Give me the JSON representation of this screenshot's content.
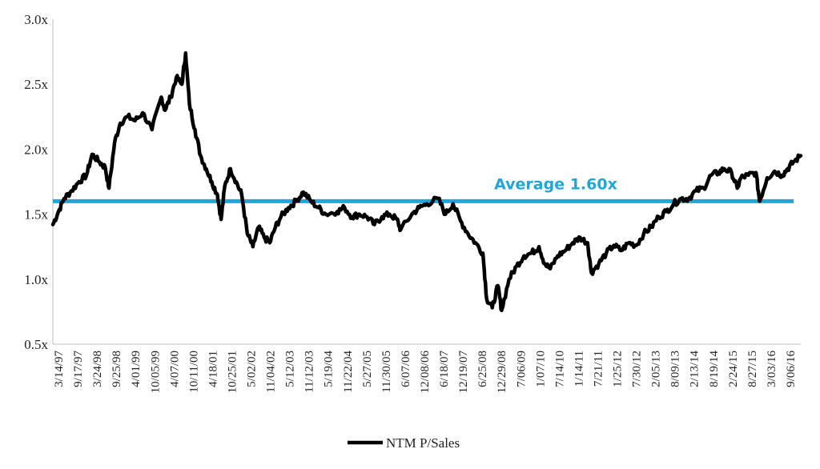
{
  "chart_data": {
    "type": "line",
    "title": "",
    "xlabel": "",
    "ylabel": "",
    "ylim": [
      0.5,
      3.0
    ],
    "y_ticks": [
      "0.5x",
      "1.0x",
      "1.5x",
      "2.0x",
      "2.5x",
      "3.0x"
    ],
    "y_tick_values": [
      0.5,
      1.0,
      1.5,
      2.0,
      2.5,
      3.0
    ],
    "x_ticks": [
      "3/14/97",
      "9/17/97",
      "3/24/98",
      "9/25/98",
      "4/01/99",
      "10/05/99",
      "4/07/00",
      "10/11/00",
      "4/18/01",
      "10/25/01",
      "5/02/02",
      "11/04/02",
      "5/12/03",
      "11/12/03",
      "5/19/04",
      "11/22/04",
      "5/27/05",
      "11/30/05",
      "6/07/06",
      "12/08/06",
      "6/18/07",
      "12/19/07",
      "6/25/08",
      "12/29/08",
      "7/06/09",
      "1/07/10",
      "7/14/10",
      "1/14/11",
      "7/21/11",
      "1/25/12",
      "7/30/12",
      "2/05/13",
      "8/09/13",
      "2/13/14",
      "8/19/14",
      "2/24/15",
      "8/27/15",
      "3/03/16",
      "9/06/16"
    ],
    "series": [
      {
        "name": "NTM P/Sales",
        "color": "#000000",
        "x_start": 1997.2,
        "x_end": 2017.2,
        "points": [
          [
            1997.2,
            1.42
          ],
          [
            1997.35,
            1.52
          ],
          [
            1997.5,
            1.62
          ],
          [
            1997.7,
            1.68
          ],
          [
            1997.9,
            1.75
          ],
          [
            1998.1,
            1.8
          ],
          [
            1998.25,
            1.96
          ],
          [
            1998.45,
            1.9
          ],
          [
            1998.6,
            1.86
          ],
          [
            1998.7,
            1.7
          ],
          [
            1998.85,
            2.05
          ],
          [
            1999.0,
            2.2
          ],
          [
            1999.2,
            2.25
          ],
          [
            1999.4,
            2.22
          ],
          [
            1999.6,
            2.28
          ],
          [
            1999.85,
            2.15
          ],
          [
            2000.1,
            2.4
          ],
          [
            2000.2,
            2.3
          ],
          [
            2000.35,
            2.4
          ],
          [
            2000.5,
            2.55
          ],
          [
            2000.65,
            2.5
          ],
          [
            2000.75,
            2.74
          ],
          [
            2000.85,
            2.35
          ],
          [
            2001.0,
            2.15
          ],
          [
            2001.15,
            1.95
          ],
          [
            2001.3,
            1.85
          ],
          [
            2001.45,
            1.75
          ],
          [
            2001.6,
            1.65
          ],
          [
            2001.7,
            1.46
          ],
          [
            2001.8,
            1.72
          ],
          [
            2001.95,
            1.85
          ],
          [
            2002.1,
            1.75
          ],
          [
            2002.25,
            1.65
          ],
          [
            2002.4,
            1.35
          ],
          [
            2002.55,
            1.25
          ],
          [
            2002.7,
            1.4
          ],
          [
            2002.85,
            1.32
          ],
          [
            2003.0,
            1.28
          ],
          [
            2003.15,
            1.4
          ],
          [
            2003.3,
            1.48
          ],
          [
            2003.5,
            1.55
          ],
          [
            2003.7,
            1.6
          ],
          [
            2003.9,
            1.67
          ],
          [
            2004.1,
            1.6
          ],
          [
            2004.3,
            1.55
          ],
          [
            2004.5,
            1.5
          ],
          [
            2004.8,
            1.52
          ],
          [
            2005.0,
            1.55
          ],
          [
            2005.2,
            1.48
          ],
          [
            2005.4,
            1.5
          ],
          [
            2005.6,
            1.48
          ],
          [
            2005.8,
            1.42
          ],
          [
            2006.0,
            1.48
          ],
          [
            2006.2,
            1.5
          ],
          [
            2006.4,
            1.46
          ],
          [
            2006.5,
            1.38
          ],
          [
            2006.8,
            1.5
          ],
          [
            2007.0,
            1.55
          ],
          [
            2007.2,
            1.58
          ],
          [
            2007.5,
            1.62
          ],
          [
            2007.7,
            1.5
          ],
          [
            2007.9,
            1.58
          ],
          [
            2008.1,
            1.45
          ],
          [
            2008.3,
            1.35
          ],
          [
            2008.5,
            1.28
          ],
          [
            2008.7,
            1.2
          ],
          [
            2008.8,
            0.85
          ],
          [
            2008.95,
            0.78
          ],
          [
            2009.1,
            0.95
          ],
          [
            2009.2,
            0.76
          ],
          [
            2009.4,
            1.0
          ],
          [
            2009.6,
            1.1
          ],
          [
            2009.8,
            1.18
          ],
          [
            2010.0,
            1.2
          ],
          [
            2010.2,
            1.25
          ],
          [
            2010.35,
            1.12
          ],
          [
            2010.5,
            1.08
          ],
          [
            2010.7,
            1.18
          ],
          [
            2010.9,
            1.22
          ],
          [
            2011.1,
            1.28
          ],
          [
            2011.3,
            1.32
          ],
          [
            2011.5,
            1.28
          ],
          [
            2011.6,
            1.05
          ],
          [
            2011.8,
            1.12
          ],
          [
            2012.0,
            1.2
          ],
          [
            2012.2,
            1.26
          ],
          [
            2012.4,
            1.22
          ],
          [
            2012.6,
            1.28
          ],
          [
            2012.8,
            1.26
          ],
          [
            2013.0,
            1.35
          ],
          [
            2013.2,
            1.4
          ],
          [
            2013.4,
            1.48
          ],
          [
            2013.6,
            1.52
          ],
          [
            2013.8,
            1.58
          ],
          [
            2014.0,
            1.62
          ],
          [
            2014.2,
            1.62
          ],
          [
            2014.4,
            1.68
          ],
          [
            2014.6,
            1.7
          ],
          [
            2014.8,
            1.8
          ],
          [
            2015.0,
            1.82
          ],
          [
            2015.15,
            1.85
          ],
          [
            2015.35,
            1.82
          ],
          [
            2015.5,
            1.7
          ],
          [
            2015.6,
            1.78
          ],
          [
            2015.8,
            1.8
          ],
          [
            2016.0,
            1.82
          ],
          [
            2016.1,
            1.6
          ],
          [
            2016.3,
            1.78
          ],
          [
            2016.5,
            1.83
          ],
          [
            2016.7,
            1.8
          ],
          [
            2016.85,
            1.85
          ],
          [
            2017.0,
            1.9
          ],
          [
            2017.2,
            1.95
          ]
        ]
      }
    ],
    "reference_line": {
      "value": 1.6,
      "label": "Average 1.60x",
      "color": "#1fa7dc"
    },
    "legend": {
      "position": "bottom-center",
      "entries": [
        "NTM P/Sales"
      ]
    }
  }
}
